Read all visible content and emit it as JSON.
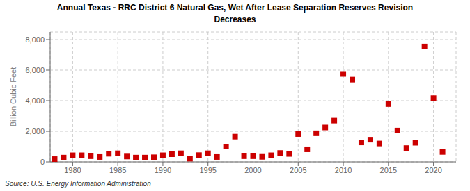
{
  "chart_data": {
    "type": "scatter",
    "title": "Annual Texas - RRC District 6 Natural Gas, Wet After Lease Separation Reserves Revision\nDecreases",
    "y_label": "Billion Cubic Feet",
    "annotations": [
      "Source: U.S. Energy Information Administration"
    ],
    "x": [
      1978,
      1979,
      1980,
      1981,
      1982,
      1983,
      1984,
      1985,
      1986,
      1987,
      1988,
      1989,
      1990,
      1991,
      1992,
      1993,
      1994,
      1995,
      1996,
      1997,
      1998,
      1999,
      2000,
      2001,
      2002,
      2003,
      2004,
      2005,
      2006,
      2007,
      2008,
      2009,
      2010,
      2011,
      2012,
      2013,
      2014,
      2015,
      2016,
      2017,
      2018,
      2019,
      2020,
      2021
    ],
    "values": [
      180,
      280,
      430,
      430,
      370,
      320,
      530,
      560,
      350,
      280,
      280,
      300,
      430,
      500,
      560,
      210,
      440,
      560,
      320,
      1000,
      1650,
      370,
      370,
      330,
      430,
      580,
      520,
      1820,
      820,
      1870,
      2250,
      2700,
      5750,
      5380,
      1270,
      1450,
      1200,
      3780,
      2050,
      900,
      1250,
      7550,
      4170,
      650
    ],
    "color": "#cc0000",
    "marker": "square",
    "xlim": [
      1977.5,
      2022.5
    ],
    "xticks": [
      1980,
      1985,
      1990,
      1995,
      2000,
      2005,
      2010,
      2015,
      2020
    ],
    "ylim": [
      0,
      8500
    ],
    "yticks": [
      0,
      {
        "value": 2000,
        "label": "2,000"
      },
      {
        "value": 4000,
        "label": "4,000"
      },
      {
        "value": 6000,
        "label": "6,000"
      },
      {
        "value": 8000,
        "label": "8,000"
      }
    ],
    "grid": true
  }
}
